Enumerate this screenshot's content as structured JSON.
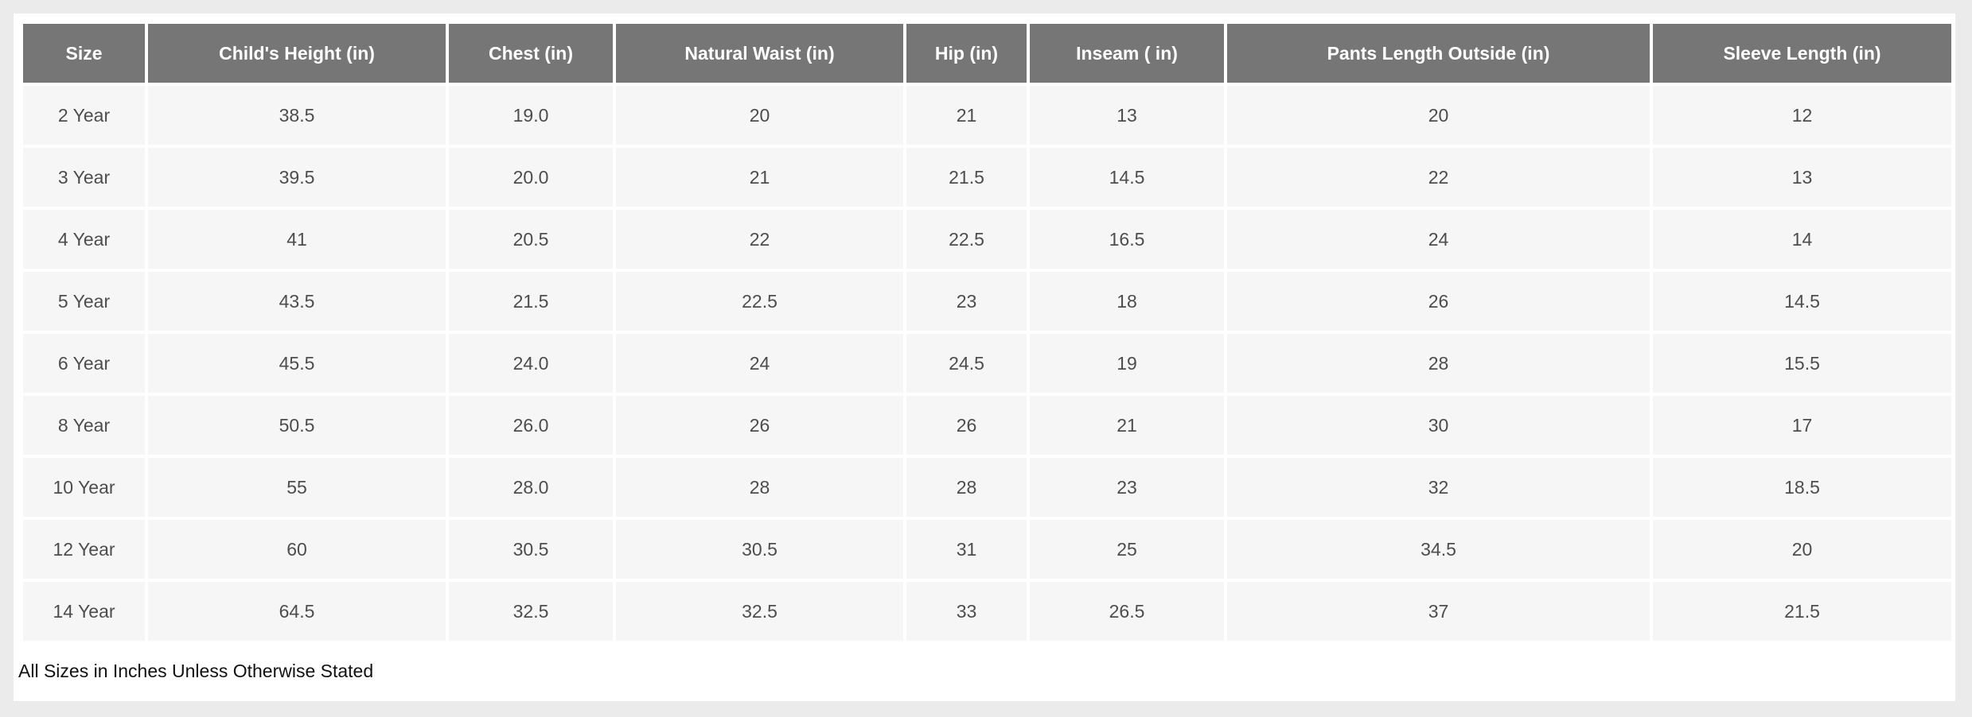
{
  "table": {
    "headers": [
      "Size",
      "Child's Height (in)",
      "Chest (in)",
      "Natural Waist (in)",
      "Hip (in)",
      "Inseam ( in)",
      "Pants Length Outside (in)",
      "Sleeve Length (in)"
    ],
    "rows": [
      [
        "2 Year",
        "38.5",
        "19.0",
        "20",
        "21",
        "13",
        "20",
        "12"
      ],
      [
        "3 Year",
        "39.5",
        "20.0",
        "21",
        "21.5",
        "14.5",
        "22",
        "13"
      ],
      [
        "4 Year",
        "41",
        "20.5",
        "22",
        "22.5",
        "16.5",
        "24",
        "14"
      ],
      [
        "5 Year",
        "43.5",
        "21.5",
        "22.5",
        "23",
        "18",
        "26",
        "14.5"
      ],
      [
        "6 Year",
        "45.5",
        "24.0",
        "24",
        "24.5",
        "19",
        "28",
        "15.5"
      ],
      [
        "8 Year",
        "50.5",
        "26.0",
        "26",
        "26",
        "21",
        "30",
        "17"
      ],
      [
        "10 Year",
        "55",
        "28.0",
        "28",
        "28",
        "23",
        "32",
        "18.5"
      ],
      [
        "12 Year",
        "60",
        "30.5",
        "30.5",
        "31",
        "25",
        "34.5",
        "20"
      ],
      [
        "14 Year",
        "64.5",
        "32.5",
        "32.5",
        "33",
        "26.5",
        "37",
        "21.5"
      ]
    ]
  },
  "footnote": "All Sizes in Inches Unless Otherwise Stated",
  "colors": {
    "header_bg": "#767676",
    "header_text": "#ffffff",
    "cell_bg": "#f6f6f6",
    "cell_text": "#4d4d4d",
    "page_bg": "#ebebeb"
  }
}
